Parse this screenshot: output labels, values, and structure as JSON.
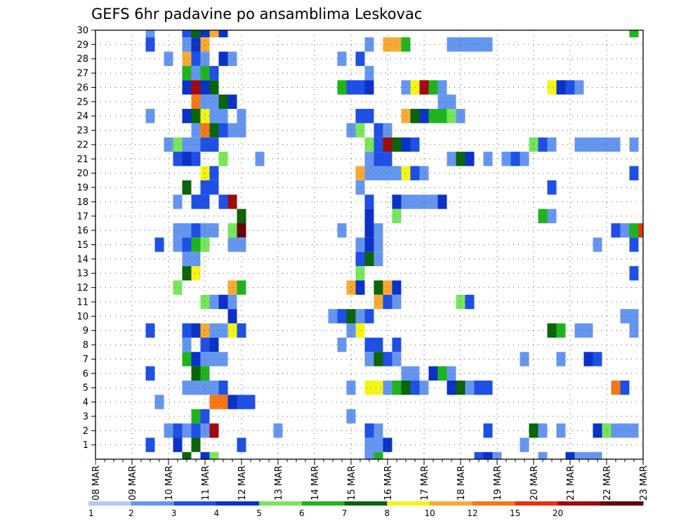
{
  "chart_data": {
    "type": "heatmap",
    "title": "GEFS 6hr padavine po ansamblima Leskovac",
    "x_tick_labels": [
      "08 MAR",
      "09 MAR",
      "10 MAR",
      "11 MAR",
      "12 MAR",
      "13 MAR",
      "14 MAR",
      "15 MAR",
      "16 MAR",
      "17 MAR",
      "18 MAR",
      "19 MAR",
      "20 MAR",
      "21 MAR",
      "22 MAR",
      "23 MAR"
    ],
    "y_tick_labels": [
      1,
      2,
      3,
      4,
      5,
      6,
      7,
      8,
      9,
      10,
      11,
      12,
      13,
      14,
      15,
      16,
      17,
      18,
      19,
      20,
      21,
      22,
      23,
      24,
      25,
      26,
      27,
      28,
      29,
      30
    ],
    "x_unit": "6-hour steps from 08 MAR 00Z",
    "x_range": [
      0,
      60
    ],
    "y_range": [
      0,
      30
    ],
    "grid": true,
    "colorbar": {
      "levels": [
        "1",
        "2",
        "3",
        "4",
        "5",
        "6",
        "7",
        "8",
        "10",
        "12",
        "15",
        "20"
      ],
      "colors": [
        "#b4c8f5",
        "#6496f0",
        "#1e50e6",
        "#0a32c8",
        "#78e65a",
        "#1eb41e",
        "#0a640a",
        "#f5f514",
        "#faaa32",
        "#f57814",
        "#e63214",
        "#a00a0a",
        "#640000"
      ]
    },
    "cells": [
      [
        6,
        30,
        1
      ],
      [
        10,
        30,
        2
      ],
      [
        11,
        30,
        6
      ],
      [
        12,
        30,
        3
      ],
      [
        13,
        30,
        8
      ],
      [
        14,
        30,
        3
      ],
      [
        59,
        30,
        5
      ],
      [
        6,
        29,
        2
      ],
      [
        10,
        29,
        1
      ],
      [
        11,
        29,
        3
      ],
      [
        12,
        29,
        8
      ],
      [
        30,
        29,
        1
      ],
      [
        32,
        29,
        8
      ],
      [
        33,
        29,
        8
      ],
      [
        34,
        29,
        5
      ],
      [
        39,
        29,
        1
      ],
      [
        40,
        29,
        1
      ],
      [
        41,
        29,
        1
      ],
      [
        42,
        29,
        1
      ],
      [
        43,
        29,
        1
      ],
      [
        8,
        28,
        1
      ],
      [
        10,
        28,
        8
      ],
      [
        11,
        28,
        2
      ],
      [
        12,
        28,
        1
      ],
      [
        14,
        28,
        3
      ],
      [
        15,
        28,
        1
      ],
      [
        27,
        28,
        1
      ],
      [
        29,
        28,
        2
      ],
      [
        10,
        27,
        5
      ],
      [
        11,
        27,
        1
      ],
      [
        12,
        27,
        5
      ],
      [
        13,
        27,
        2
      ],
      [
        30,
        27,
        1
      ],
      [
        10,
        26,
        3
      ],
      [
        11,
        26,
        11
      ],
      [
        12,
        26,
        3
      ],
      [
        13,
        26,
        6
      ],
      [
        27,
        26,
        5
      ],
      [
        28,
        26,
        2
      ],
      [
        29,
        26,
        2
      ],
      [
        30,
        26,
        3
      ],
      [
        34,
        26,
        1
      ],
      [
        35,
        26,
        7
      ],
      [
        36,
        26,
        11
      ],
      [
        37,
        26,
        5
      ],
      [
        38,
        26,
        1
      ],
      [
        50,
        26,
        7
      ],
      [
        51,
        26,
        3
      ],
      [
        52,
        26,
        2
      ],
      [
        53,
        26,
        1
      ],
      [
        11,
        25,
        9
      ],
      [
        12,
        25,
        1
      ],
      [
        13,
        25,
        1
      ],
      [
        14,
        25,
        6
      ],
      [
        15,
        25,
        3
      ],
      [
        38,
        25,
        1
      ],
      [
        39,
        25,
        1
      ],
      [
        6,
        24,
        1
      ],
      [
        10,
        24,
        3
      ],
      [
        11,
        24,
        6
      ],
      [
        12,
        24,
        7
      ],
      [
        13,
        24,
        1
      ],
      [
        14,
        24,
        1
      ],
      [
        16,
        24,
        1
      ],
      [
        29,
        24,
        2
      ],
      [
        30,
        24,
        2
      ],
      [
        34,
        24,
        8
      ],
      [
        35,
        24,
        6
      ],
      [
        36,
        24,
        3
      ],
      [
        37,
        24,
        5
      ],
      [
        38,
        24,
        5
      ],
      [
        39,
        24,
        4
      ],
      [
        40,
        24,
        1
      ],
      [
        11,
        23,
        1
      ],
      [
        12,
        23,
        9
      ],
      [
        13,
        23,
        6
      ],
      [
        14,
        23,
        2
      ],
      [
        15,
        23,
        1
      ],
      [
        16,
        23,
        1
      ],
      [
        28,
        23,
        1
      ],
      [
        29,
        23,
        4
      ],
      [
        31,
        23,
        2
      ],
      [
        32,
        23,
        1
      ],
      [
        8,
        22,
        1
      ],
      [
        9,
        22,
        4
      ],
      [
        10,
        22,
        1
      ],
      [
        11,
        22,
        1
      ],
      [
        12,
        22,
        2
      ],
      [
        13,
        22,
        2
      ],
      [
        30,
        22,
        4
      ],
      [
        31,
        22,
        2
      ],
      [
        32,
        22,
        11
      ],
      [
        33,
        22,
        6
      ],
      [
        34,
        22,
        3
      ],
      [
        35,
        22,
        2
      ],
      [
        48,
        22,
        4
      ],
      [
        49,
        22,
        2
      ],
      [
        50,
        22,
        1
      ],
      [
        53,
        22,
        1
      ],
      [
        54,
        22,
        1
      ],
      [
        55,
        22,
        1
      ],
      [
        56,
        22,
        1
      ],
      [
        57,
        22,
        1
      ],
      [
        59,
        22,
        1
      ],
      [
        9,
        21,
        2
      ],
      [
        10,
        21,
        3
      ],
      [
        11,
        21,
        2
      ],
      [
        14,
        21,
        4
      ],
      [
        18,
        21,
        1
      ],
      [
        30,
        21,
        1
      ],
      [
        31,
        21,
        2
      ],
      [
        32,
        21,
        2
      ],
      [
        39,
        21,
        1
      ],
      [
        40,
        21,
        6
      ],
      [
        41,
        21,
        3
      ],
      [
        43,
        21,
        1
      ],
      [
        45,
        21,
        1
      ],
      [
        46,
        21,
        2
      ],
      [
        47,
        21,
        1
      ],
      [
        12,
        20,
        7
      ],
      [
        13,
        20,
        2
      ],
      [
        29,
        20,
        8
      ],
      [
        30,
        20,
        1
      ],
      [
        31,
        20,
        1
      ],
      [
        32,
        20,
        1
      ],
      [
        33,
        20,
        1
      ],
      [
        34,
        20,
        7
      ],
      [
        35,
        20,
        2
      ],
      [
        36,
        20,
        1
      ],
      [
        59,
        20,
        2
      ],
      [
        10,
        19,
        6
      ],
      [
        12,
        19,
        2
      ],
      [
        13,
        19,
        2
      ],
      [
        29,
        19,
        1
      ],
      [
        50,
        19,
        2
      ],
      [
        9,
        18,
        1
      ],
      [
        11,
        18,
        2
      ],
      [
        12,
        18,
        2
      ],
      [
        14,
        18,
        2
      ],
      [
        15,
        18,
        11
      ],
      [
        30,
        18,
        2
      ],
      [
        33,
        18,
        3
      ],
      [
        34,
        18,
        1
      ],
      [
        35,
        18,
        1
      ],
      [
        36,
        18,
        1
      ],
      [
        37,
        18,
        1
      ],
      [
        38,
        18,
        3
      ],
      [
        16,
        17,
        6
      ],
      [
        30,
        17,
        3
      ],
      [
        33,
        17,
        4
      ],
      [
        49,
        17,
        5
      ],
      [
        50,
        17,
        1
      ],
      [
        9,
        16,
        1
      ],
      [
        10,
        16,
        1
      ],
      [
        11,
        16,
        2
      ],
      [
        12,
        16,
        1
      ],
      [
        13,
        16,
        1
      ],
      [
        15,
        16,
        4
      ],
      [
        16,
        16,
        12
      ],
      [
        27,
        16,
        1
      ],
      [
        30,
        16,
        3
      ],
      [
        31,
        16,
        1
      ],
      [
        57,
        16,
        2
      ],
      [
        58,
        16,
        1
      ],
      [
        59,
        16,
        5
      ],
      [
        60,
        16,
        10
      ],
      [
        7,
        15,
        2
      ],
      [
        9,
        15,
        1
      ],
      [
        10,
        15,
        2
      ],
      [
        11,
        15,
        5
      ],
      [
        12,
        15,
        4
      ],
      [
        15,
        15,
        1
      ],
      [
        16,
        15,
        1
      ],
      [
        29,
        15,
        1
      ],
      [
        30,
        15,
        3
      ],
      [
        31,
        15,
        1
      ],
      [
        55,
        15,
        1
      ],
      [
        59,
        15,
        2
      ],
      [
        10,
        14,
        1
      ],
      [
        11,
        14,
        1
      ],
      [
        29,
        14,
        2
      ],
      [
        30,
        14,
        6
      ],
      [
        31,
        14,
        1
      ],
      [
        10,
        13,
        6
      ],
      [
        11,
        13,
        7
      ],
      [
        29,
        13,
        4
      ],
      [
        59,
        13,
        2
      ],
      [
        9,
        12,
        4
      ],
      [
        15,
        12,
        8
      ],
      [
        16,
        12,
        5
      ],
      [
        28,
        12,
        8
      ],
      [
        29,
        12,
        3
      ],
      [
        31,
        12,
        6
      ],
      [
        32,
        12,
        8
      ],
      [
        33,
        12,
        3
      ],
      [
        12,
        11,
        4
      ],
      [
        13,
        11,
        1
      ],
      [
        14,
        11,
        3
      ],
      [
        15,
        11,
        1
      ],
      [
        31,
        11,
        8
      ],
      [
        32,
        11,
        2
      ],
      [
        33,
        11,
        1
      ],
      [
        40,
        11,
        4
      ],
      [
        41,
        11,
        2
      ],
      [
        15,
        10,
        3
      ],
      [
        26,
        10,
        1
      ],
      [
        27,
        10,
        2
      ],
      [
        28,
        10,
        6
      ],
      [
        29,
        10,
        1
      ],
      [
        30,
        10,
        2
      ],
      [
        58,
        10,
        1
      ],
      [
        59,
        10,
        1
      ],
      [
        6,
        9,
        2
      ],
      [
        10,
        9,
        2
      ],
      [
        11,
        9,
        3
      ],
      [
        12,
        9,
        8
      ],
      [
        13,
        9,
        1
      ],
      [
        14,
        9,
        1
      ],
      [
        15,
        9,
        7
      ],
      [
        16,
        9,
        2
      ],
      [
        28,
        9,
        1
      ],
      [
        29,
        9,
        7
      ],
      [
        50,
        9,
        6
      ],
      [
        51,
        9,
        5
      ],
      [
        53,
        9,
        1
      ],
      [
        54,
        9,
        1
      ],
      [
        59,
        9,
        1
      ],
      [
        10,
        8,
        1
      ],
      [
        12,
        8,
        2
      ],
      [
        13,
        8,
        3
      ],
      [
        27,
        8,
        1
      ],
      [
        30,
        8,
        2
      ],
      [
        31,
        8,
        2
      ],
      [
        33,
        8,
        2
      ],
      [
        10,
        7,
        5
      ],
      [
        11,
        7,
        3
      ],
      [
        12,
        7,
        1
      ],
      [
        13,
        7,
        1
      ],
      [
        14,
        7,
        1
      ],
      [
        30,
        7,
        1
      ],
      [
        31,
        7,
        6
      ],
      [
        32,
        7,
        2
      ],
      [
        33,
        7,
        1
      ],
      [
        47,
        7,
        1
      ],
      [
        51,
        7,
        1
      ],
      [
        54,
        7,
        3
      ],
      [
        55,
        7,
        2
      ],
      [
        6,
        6,
        2
      ],
      [
        11,
        6,
        6
      ],
      [
        12,
        6,
        5
      ],
      [
        34,
        6,
        1
      ],
      [
        35,
        6,
        1
      ],
      [
        37,
        6,
        3
      ],
      [
        38,
        6,
        5
      ],
      [
        39,
        6,
        1
      ],
      [
        10,
        5,
        1
      ],
      [
        11,
        5,
        1
      ],
      [
        12,
        5,
        1
      ],
      [
        13,
        5,
        1
      ],
      [
        14,
        5,
        2
      ],
      [
        28,
        5,
        1
      ],
      [
        30,
        5,
        7
      ],
      [
        31,
        5,
        7
      ],
      [
        32,
        5,
        1
      ],
      [
        33,
        5,
        5
      ],
      [
        34,
        5,
        6
      ],
      [
        35,
        5,
        2
      ],
      [
        36,
        5,
        1
      ],
      [
        39,
        5,
        3
      ],
      [
        40,
        5,
        6
      ],
      [
        41,
        5,
        1
      ],
      [
        42,
        5,
        2
      ],
      [
        43,
        5,
        2
      ],
      [
        57,
        5,
        9
      ],
      [
        58,
        5,
        2
      ],
      [
        7,
        4,
        1
      ],
      [
        13,
        4,
        9
      ],
      [
        14,
        4,
        9
      ],
      [
        15,
        4,
        3
      ],
      [
        16,
        4,
        2
      ],
      [
        17,
        4,
        2
      ],
      [
        11,
        3,
        5
      ],
      [
        12,
        3,
        2
      ],
      [
        28,
        3,
        1
      ],
      [
        8,
        2,
        1
      ],
      [
        9,
        2,
        2
      ],
      [
        10,
        2,
        1
      ],
      [
        11,
        2,
        2
      ],
      [
        12,
        2,
        1
      ],
      [
        13,
        2,
        11
      ],
      [
        20,
        2,
        1
      ],
      [
        30,
        2,
        2
      ],
      [
        31,
        2,
        1
      ],
      [
        43,
        2,
        2
      ],
      [
        48,
        2,
        6
      ],
      [
        49,
        2,
        1
      ],
      [
        51,
        2,
        1
      ],
      [
        55,
        2,
        3
      ],
      [
        56,
        2,
        4
      ],
      [
        57,
        2,
        1
      ],
      [
        58,
        2,
        1
      ],
      [
        59,
        2,
        1
      ],
      [
        6,
        1,
        2
      ],
      [
        9,
        1,
        3
      ],
      [
        11,
        1,
        6
      ],
      [
        16,
        1,
        2
      ],
      [
        30,
        1,
        1
      ],
      [
        31,
        1,
        1
      ],
      [
        32,
        1,
        3
      ],
      [
        47,
        1,
        1
      ],
      [
        10,
        0,
        6
      ],
      [
        12,
        0,
        3
      ],
      [
        13,
        0,
        4
      ],
      [
        30,
        0,
        1
      ],
      [
        31,
        0,
        5
      ],
      [
        42,
        0,
        2
      ],
      [
        43,
        0,
        3
      ],
      [
        44,
        0,
        1
      ],
      [
        49,
        0,
        1
      ],
      [
        52,
        0,
        3
      ],
      [
        53,
        0,
        1
      ],
      [
        54,
        0,
        1
      ],
      [
        55,
        0,
        1
      ]
    ]
  }
}
